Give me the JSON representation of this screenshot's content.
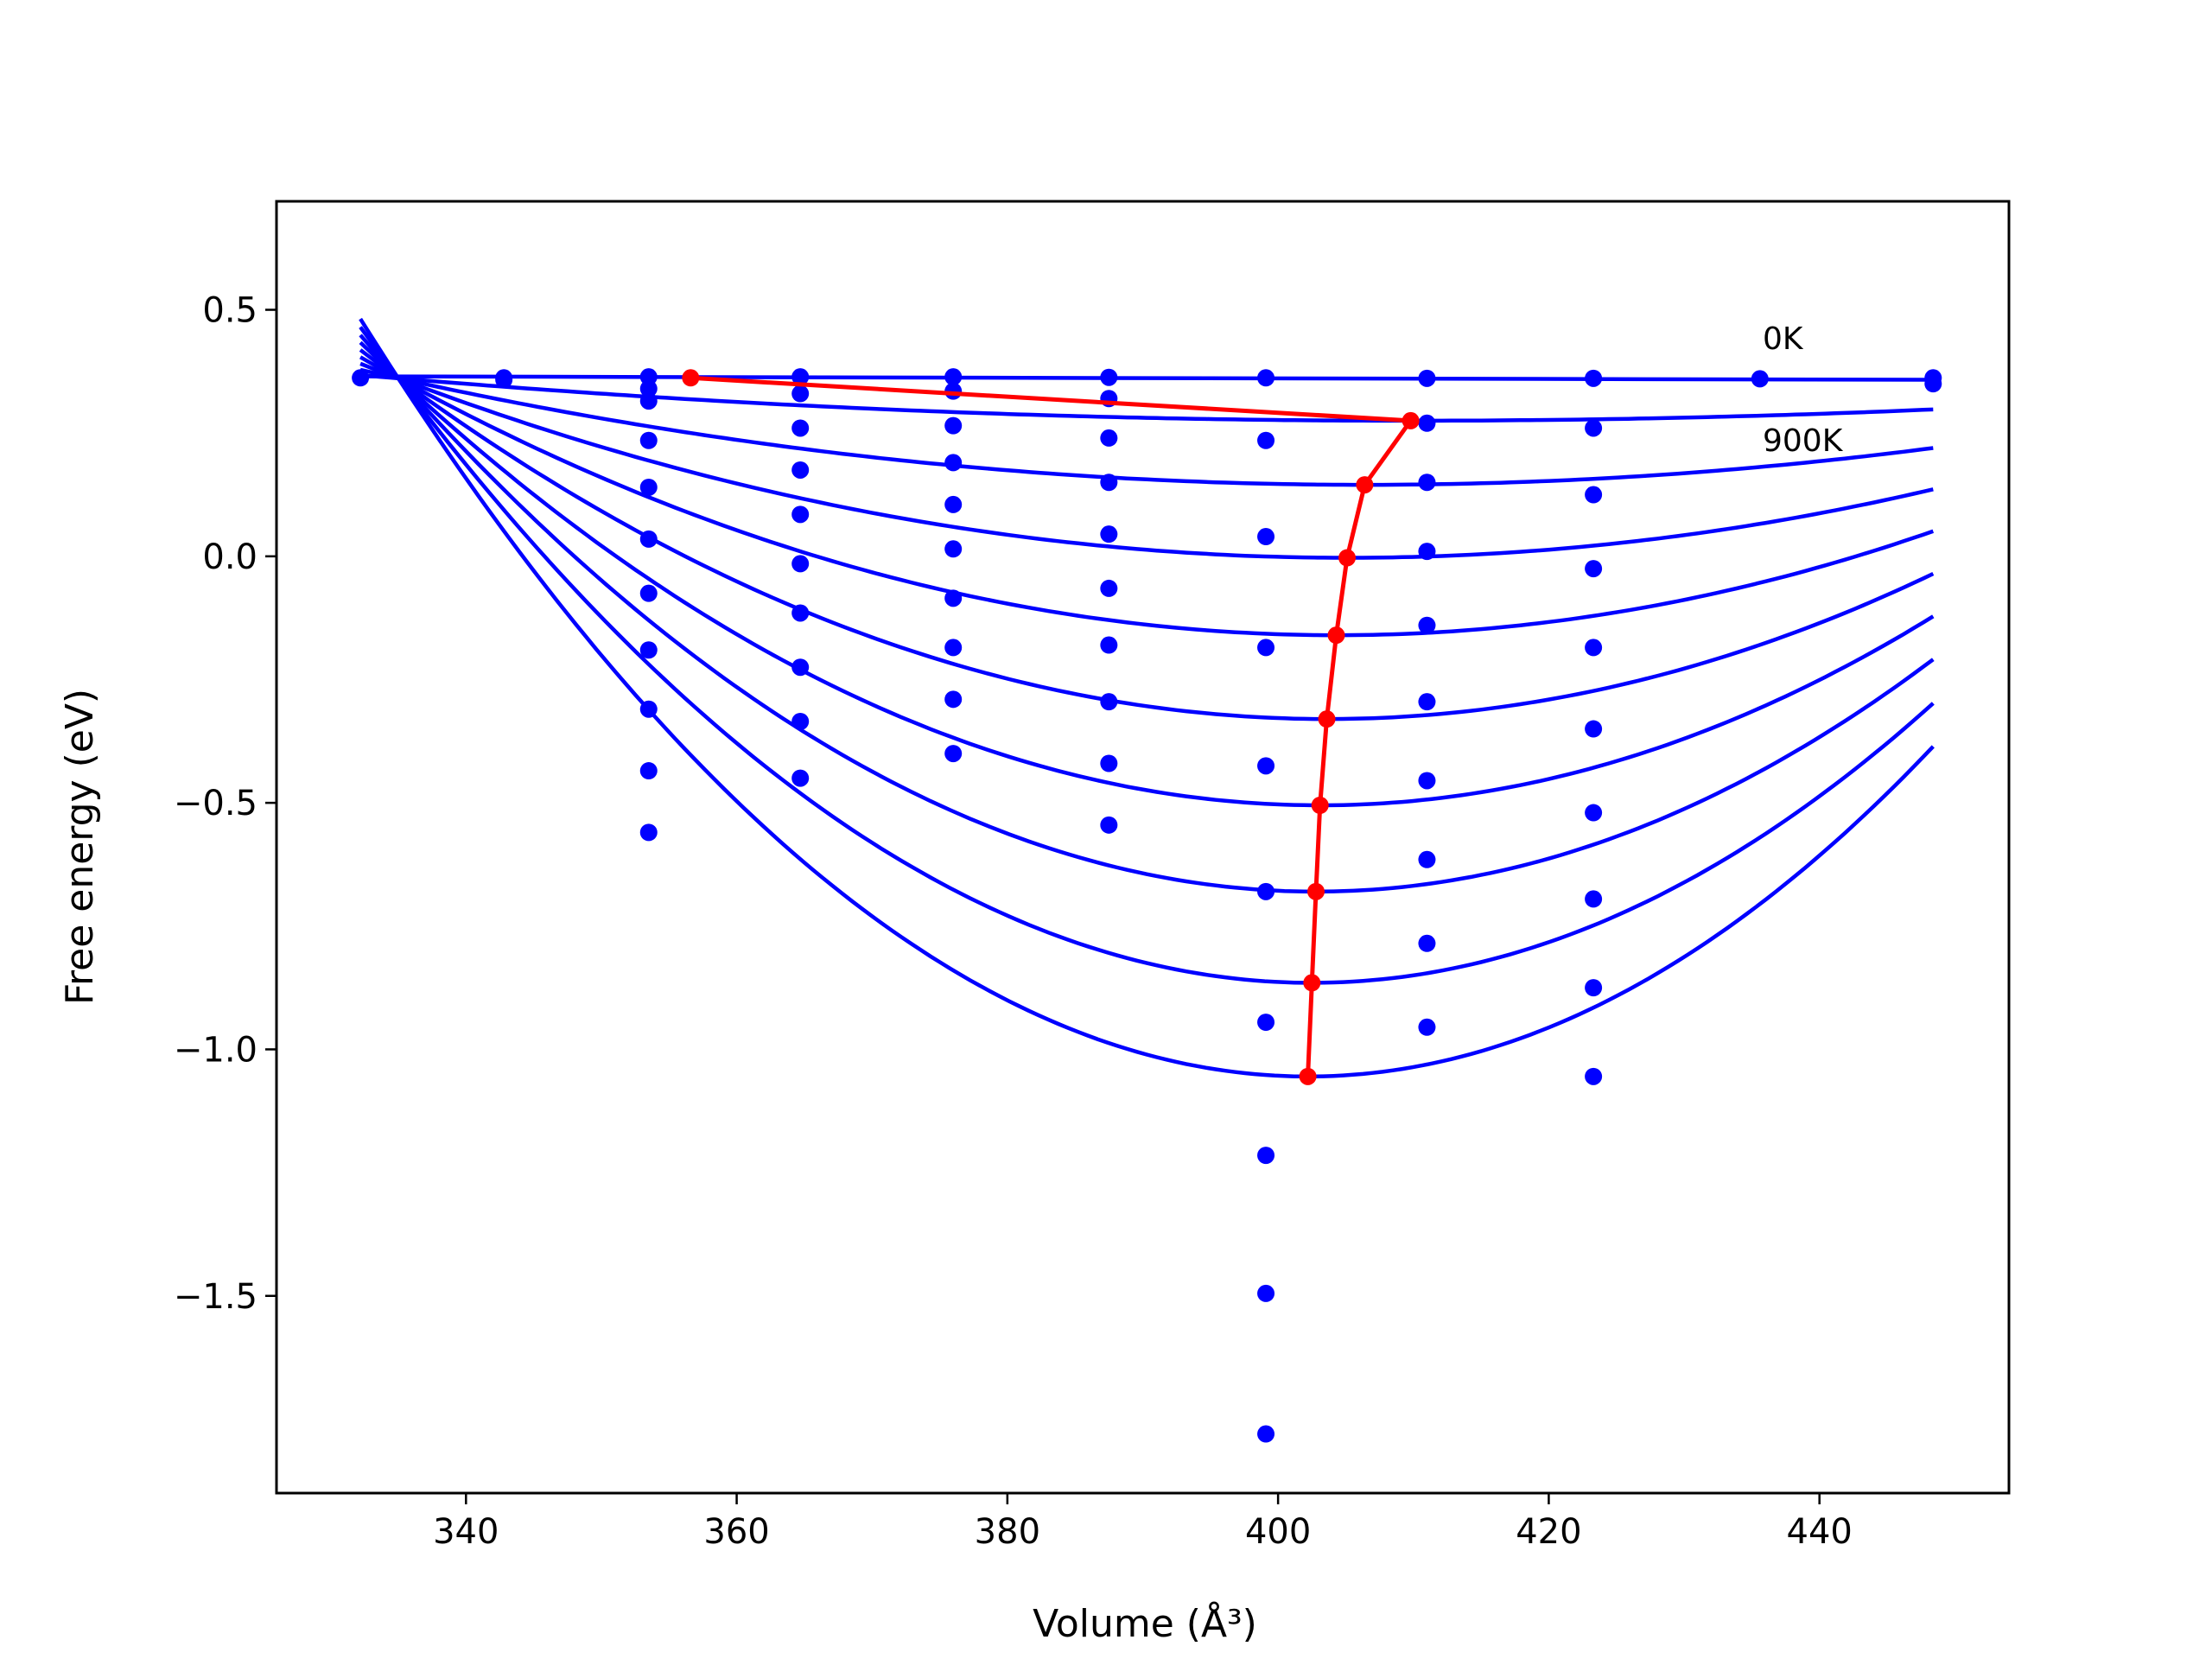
{
  "chart_data": {
    "type": "line",
    "xlabel": "Volume (Å³)",
    "ylabel": "Free energy (eV)",
    "xlim": [
      326,
      454
    ],
    "ylim": [
      -1.9,
      0.72
    ],
    "xticks": [
      340,
      360,
      380,
      400,
      420,
      440
    ],
    "yticks": [
      0.5,
      0.0,
      -0.5,
      -1.0,
      -1.5
    ],
    "annotations": [
      {
        "text": "0K",
        "x": 435.5,
        "y": 0.415
      },
      {
        "text": "900K",
        "x": 435.5,
        "y": 0.225
      }
    ],
    "grid": false,
    "colors": {
      "fits": "#0000ff",
      "points": "#0000ff",
      "minima": "#ff0000"
    },
    "fit_curves": {
      "x_range": [
        332.2,
        448.4
      ],
      "temperatures": [
        "0K",
        "100K",
        "200K",
        "300K",
        "400K",
        "500K",
        "600K",
        "700K",
        "800K",
        "900K"
      ],
      "minima": [
        {
          "x": 356.6,
          "y": 0.362
        },
        {
          "x": 409.8,
          "y": 0.275
        },
        {
          "x": 406.4,
          "y": 0.145
        },
        {
          "x": 405.1,
          "y": -0.003
        },
        {
          "x": 404.3,
          "y": -0.16
        },
        {
          "x": 403.6,
          "y": -0.33
        },
        {
          "x": 403.1,
          "y": -0.505
        },
        {
          "x": 402.8,
          "y": -0.68
        },
        {
          "x": 402.5,
          "y": -0.865
        },
        {
          "x": 402.2,
          "y": -1.055
        }
      ],
      "crossings": [
        {
          "x": 335.0,
          "y": 0.362
        },
        {
          "x": 445.5,
          "y": 0.36
        }
      ]
    },
    "data_points": [
      {
        "x": 332.2,
        "y": [
          0.362
        ]
      },
      {
        "x": 342.8,
        "y": [
          0.362,
          0.358
        ]
      },
      {
        "x": 353.5,
        "y": [
          0.364,
          0.34,
          0.315,
          0.235,
          0.14,
          0.035,
          -0.075,
          -0.19,
          -0.31,
          -0.435,
          -0.56
        ]
      },
      {
        "x": 364.7,
        "y": [
          0.364,
          0.33,
          0.26,
          0.175,
          0.085,
          -0.015,
          -0.115,
          -0.225,
          -0.335,
          -0.45
        ]
      },
      {
        "x": 376.0,
        "y": [
          0.364,
          0.335,
          0.265,
          0.19,
          0.105,
          0.015,
          -0.085,
          -0.185,
          -0.29,
          -0.4
        ]
      },
      {
        "x": 387.5,
        "y": [
          0.363,
          0.32,
          0.24,
          0.15,
          0.045,
          -0.065,
          -0.18,
          -0.295,
          -0.42,
          -0.545
        ]
      },
      {
        "x": 399.1,
        "y": [
          0.362,
          0.235,
          0.04,
          -0.185,
          -0.425,
          -0.68,
          -0.945,
          -1.215,
          -1.495,
          -1.78
        ]
      },
      {
        "x": 411.0,
        "y": [
          0.361,
          0.27,
          0.15,
          0.01,
          -0.14,
          -0.295,
          -0.455,
          -0.615,
          -0.785,
          -0.955
        ]
      },
      {
        "x": 423.3,
        "y": [
          0.361,
          0.26,
          0.125,
          -0.025,
          -0.185,
          -0.35,
          -0.52,
          -0.695,
          -0.875,
          -1.055
        ]
      },
      {
        "x": 435.6,
        "y": [
          0.36
        ]
      },
      {
        "x": 448.4,
        "y": [
          0.362,
          0.35
        ]
      }
    ]
  }
}
